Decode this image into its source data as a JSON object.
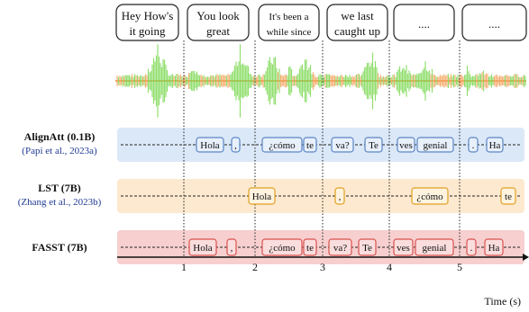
{
  "speech_bubbles": [
    {
      "line1": "Hey How's",
      "line2": "it going"
    },
    {
      "line1": "You look",
      "line2": "great"
    },
    {
      "line1": "It's been a",
      "line2": "while since"
    },
    {
      "line1": "we last",
      "line2": "caught up"
    },
    {
      "line1": "....",
      "line2": ""
    },
    {
      "line1": "....",
      "line2": ""
    }
  ],
  "colors": {
    "waveform_green": "#7ed957",
    "waveform_orange": "#f4a460",
    "alignatt_fill": "#dbe8f7",
    "alignatt_token_border": "#5b86c5",
    "lst_fill": "#fde9cf",
    "lst_token_border": "#e0a020",
    "fasst_fill": "#f7cfcf",
    "fasst_token_border": "#d9534f",
    "citation": "#1f3a93"
  },
  "rows": [
    {
      "name": "AlignAtt (0.1B)",
      "citation": "(Papi et al., 2023a)",
      "tokens": [
        "Hola",
        ",",
        "¿cómo",
        "te",
        "va?",
        "Te",
        "ves",
        "genial",
        ".",
        "Ha"
      ]
    },
    {
      "name": "LST (7B)",
      "citation": "(Zhang et al., 2023b)",
      "tokens": [
        "Hola",
        ",",
        "¿cómo",
        "te"
      ]
    },
    {
      "name": "FASST (7B)",
      "citation": "",
      "tokens": [
        "Hola",
        ",",
        "¿cómo",
        "te",
        "va?",
        "Te",
        "ves",
        "genial",
        ".",
        "Ha"
      ]
    }
  ],
  "axis": {
    "ticks": [
      "1",
      "2",
      "3",
      "4",
      "5"
    ],
    "label": "Time (s)"
  }
}
